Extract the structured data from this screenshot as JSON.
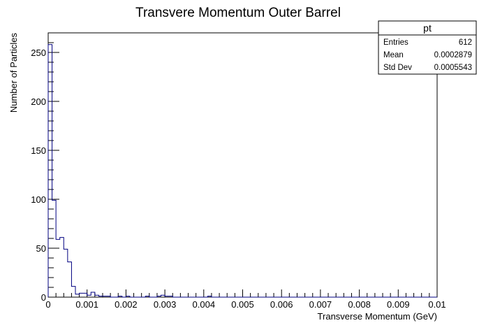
{
  "chart_data": {
    "type": "bar",
    "title": "Transvere Momentum Outer Barrel",
    "xlabel": "Transverse Momentum (GeV)",
    "ylabel": "Number of Particles",
    "xlim": [
      0,
      0.01
    ],
    "ylim": [
      0,
      270
    ],
    "bin_width": 0.0001,
    "x_ticks": [
      "0",
      "0.001",
      "0.002",
      "0.003",
      "0.004",
      "0.005",
      "0.006",
      "0.007",
      "0.008",
      "0.009",
      "0.01"
    ],
    "y_ticks": [
      "0",
      "50",
      "100",
      "150",
      "200",
      "250"
    ],
    "values": [
      258,
      99,
      59,
      61,
      49,
      36,
      11,
      3,
      4,
      4,
      2,
      5,
      2,
      1,
      1,
      1,
      0,
      0,
      1,
      0,
      1,
      0,
      0,
      0,
      0,
      1,
      0,
      0,
      1,
      2,
      1,
      1,
      0,
      0,
      0,
      0,
      0,
      0,
      0,
      0,
      0,
      1,
      0,
      0,
      0,
      0,
      0,
      0,
      0,
      0,
      0,
      0,
      0,
      0,
      0,
      0,
      0,
      0,
      0,
      0,
      0,
      0,
      0,
      0,
      0,
      0,
      0,
      0,
      0,
      0,
      0,
      0,
      0,
      0,
      0,
      0,
      0,
      0,
      0,
      0,
      0,
      0,
      0,
      0,
      0,
      0,
      0,
      0,
      0,
      0,
      0,
      0,
      0,
      0,
      0,
      0,
      0,
      0,
      0,
      0
    ],
    "line_color": "#000080",
    "stats": {
      "name": "pt",
      "rows": [
        {
          "label": "Entries",
          "value": "612"
        },
        {
          "label": "Mean",
          "value": "0.0002879"
        },
        {
          "label": "Std Dev",
          "value": "0.0005543"
        }
      ]
    }
  }
}
